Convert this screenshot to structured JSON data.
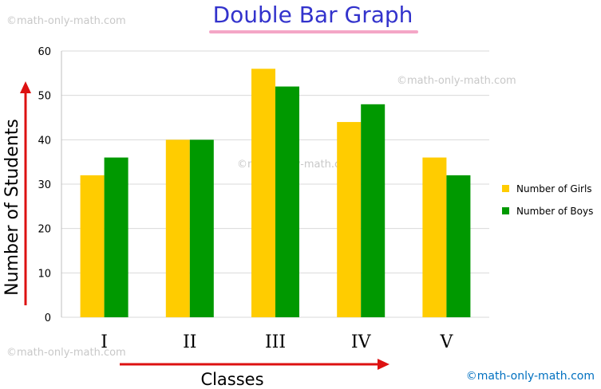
{
  "watermark": "©math-only-math.com",
  "credit": "©math-only-math.com",
  "colors": {
    "title": "#3333cc",
    "underline": "#f4a6c6",
    "girls": "#ffcc00",
    "boys": "#009900",
    "axis_arrow": "#dd1111",
    "credit": "#0070c0",
    "grid": "#d9d9d9"
  },
  "chart_data": {
    "type": "bar",
    "title": "Double Bar Graph",
    "xlabel": "Classes",
    "ylabel": "Number of Students",
    "categories": [
      "I",
      "II",
      "III",
      "IV",
      "V"
    ],
    "series": [
      {
        "name": "Number of Girls",
        "values": [
          32,
          40,
          56,
          44,
          36
        ]
      },
      {
        "name": "Number of Boys",
        "values": [
          36,
          40,
          52,
          48,
          32
        ]
      }
    ],
    "ylim": [
      0,
      60
    ],
    "yticks": [
      0,
      10,
      20,
      30,
      40,
      50,
      60
    ],
    "grid": true,
    "legend": "right"
  }
}
